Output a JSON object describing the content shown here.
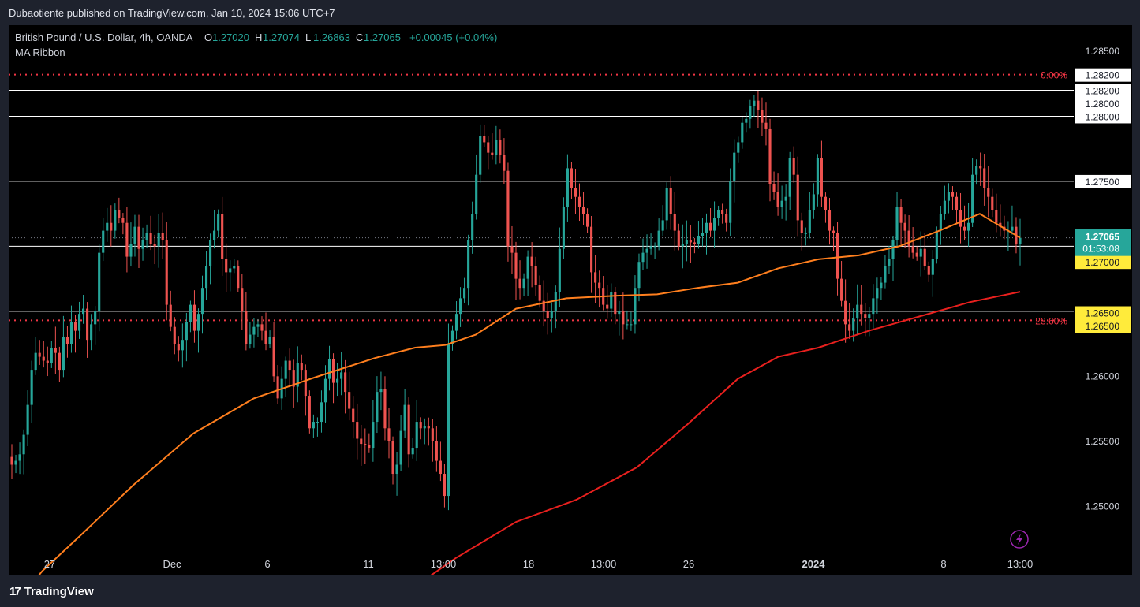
{
  "header": {
    "publish_line": "Dubaotiente published on TradingView.com, Jan 10, 2024 15:06 UTC+7"
  },
  "legend": {
    "symbol": "British Pound / U.S. Dollar, 4h, OANDA",
    "o_label": "O",
    "o_value": "1.27020",
    "h_label": "H",
    "h_value": "1.27074",
    "l_label": "L",
    "l_value": "1.26863",
    "c_label": "C",
    "c_value": "1.27065",
    "change": "+0.00045 (+0.04%)",
    "indicator": "MA Ribbon"
  },
  "footer": {
    "brand": "TradingView"
  },
  "colors": {
    "up": "#26a69a",
    "down": "#ef5350",
    "ma_fast": "#ff7f1e",
    "ma_slow": "#e8201e",
    "fib": "#f23645",
    "level": "#ffffff",
    "price_tag": "#26a69a",
    "level_tag": "#ffeb3b"
  },
  "chart_data": {
    "type": "candlestick",
    "title": "British Pound / U.S. Dollar, 4h, OANDA",
    "ylim": [
      1.2465,
      1.287
    ],
    "y_ticks": [
      "1.25000",
      "1.25500",
      "1.26000",
      "1.27500",
      "1.28000",
      "1.28500"
    ],
    "x_ticks": [
      "27",
      "Dec",
      "6",
      "11",
      "13:00",
      "18",
      "13:00",
      "26",
      "2024",
      "8",
      "13:00"
    ],
    "horizontal_levels": [
      {
        "value": 1.282,
        "label": "1.28200",
        "style": "solid"
      },
      {
        "value": 1.28,
        "label": "1.28000",
        "style": "solid"
      },
      {
        "value": 1.275,
        "label": "1.27500",
        "style": "solid"
      },
      {
        "value": 1.27,
        "label": "1.27000",
        "style": "solid"
      },
      {
        "value": 1.265,
        "label": "1.26500",
        "style": "solid"
      }
    ],
    "fib_levels": [
      {
        "value": 1.2832,
        "label": "0.00%"
      },
      {
        "value": 1.2643,
        "label": "23.60%"
      }
    ],
    "right_tags": [
      {
        "value": 1.2832,
        "label": "1.28200",
        "kind": "level"
      },
      {
        "value": 1.282,
        "label": "1.28200",
        "kind": "level"
      },
      {
        "value": 1.281,
        "label": "1.28000",
        "kind": "level"
      },
      {
        "value": 1.28,
        "label": "1.28000",
        "kind": "level"
      },
      {
        "value": 1.275,
        "label": "1.27500",
        "kind": "level"
      },
      {
        "value": 1.2699,
        "label": "1.27000",
        "kind": "yellow"
      },
      {
        "value": 1.2688,
        "label": "1.27000",
        "kind": "yellow"
      },
      {
        "value": 1.2649,
        "label": "1.26500",
        "kind": "yellow"
      },
      {
        "value": 1.2639,
        "label": "1.26500",
        "kind": "yellow"
      }
    ],
    "last_price": {
      "value": 1.27065,
      "label": "1.27065",
      "countdown": "01:53:08"
    },
    "candles_close": [
      1.2532,
      1.2535,
      1.254,
      1.2555,
      1.2578,
      1.2605,
      1.2618,
      1.2615,
      1.2612,
      1.261,
      1.2622,
      1.2618,
      1.2605,
      1.263,
      1.2625,
      1.2642,
      1.2635,
      1.2648,
      1.2652,
      1.2628,
      1.264,
      1.265,
      1.2695,
      1.2712,
      1.2718,
      1.2712,
      1.2728,
      1.2722,
      1.2718,
      1.2692,
      1.2702,
      1.2715,
      1.2698,
      1.2705,
      1.271,
      1.2702,
      1.27,
      1.271,
      1.2705,
      1.2655,
      1.2638,
      1.2625,
      1.262,
      1.2628,
      1.2642,
      1.2655,
      1.2635,
      1.2648,
      1.2668,
      1.2685,
      1.2705,
      1.2712,
      1.2725,
      1.269,
      1.268,
      1.2683,
      1.2685,
      1.2668,
      1.265,
      1.2625,
      1.2632,
      1.2638,
      1.264,
      1.2635,
      1.2625,
      1.263,
      1.26,
      1.2583,
      1.2598,
      1.2612,
      1.2605,
      1.2592,
      1.261,
      1.2605,
      1.2585,
      1.256,
      1.2565,
      1.2565,
      1.258,
      1.2598,
      1.2613,
      1.2595,
      1.2598,
      1.2603,
      1.2588,
      1.2575,
      1.2565,
      1.2552,
      1.2548,
      1.2547,
      1.2545,
      1.2565,
      1.2588,
      1.259,
      1.256,
      1.255,
      1.2525,
      1.2532,
      1.2558,
      1.2578,
      1.254,
      1.2545,
      1.2565,
      1.256,
      1.2562,
      1.256,
      1.255,
      1.2535,
      1.2525,
      1.2508,
      1.2625,
      1.2635,
      1.2648,
      1.266,
      1.2668,
      1.2705,
      1.2725,
      1.2755,
      1.2785,
      1.278,
      1.2772,
      1.277,
      1.2782,
      1.277,
      1.2758,
      1.27,
      1.2695,
      1.2675,
      1.2668,
      1.2675,
      1.2692,
      1.2685,
      1.267,
      1.2658,
      1.265,
      1.2645,
      1.265,
      1.2665,
      1.2698,
      1.273,
      1.276,
      1.2745,
      1.2738,
      1.273,
      1.2725,
      1.2715,
      1.268,
      1.2672,
      1.2668,
      1.2655,
      1.2652,
      1.2665,
      1.2648,
      1.265,
      1.264,
      1.264,
      1.264,
      1.2668,
      1.2688,
      1.2695,
      1.2698,
      1.27,
      1.27,
      1.2712,
      1.272,
      1.2745,
      1.2725,
      1.2712,
      1.27,
      1.2702,
      1.2705,
      1.2703,
      1.2702,
      1.2708,
      1.271,
      1.2718,
      1.2712,
      1.2722,
      1.2728,
      1.2725,
      1.2718,
      1.275,
      1.2772,
      1.278,
      1.2795,
      1.2798,
      1.2808,
      1.2812,
      1.2805,
      1.2795,
      1.279,
      1.2748,
      1.2742,
      1.273,
      1.2735,
      1.2738,
      1.2768,
      1.2755,
      1.272,
      1.271,
      1.271,
      1.2728,
      1.274,
      1.2768,
      1.2738,
      1.2728,
      1.2712,
      1.271,
      1.2675,
      1.2658,
      1.264,
      1.2635,
      1.2645,
      1.2655,
      1.2648,
      1.2645,
      1.2648,
      1.266,
      1.2668,
      1.2672,
      1.2685,
      1.269,
      1.2705,
      1.273,
      1.2718,
      1.2712,
      1.27,
      1.2695,
      1.2692,
      1.2698,
      1.2685,
      1.2678,
      1.269,
      1.2712,
      1.2725,
      1.2735,
      1.2742,
      1.2738,
      1.2728,
      1.2715,
      1.2712,
      1.2718,
      1.2755,
      1.2762,
      1.276,
      1.2745,
      1.2738,
      1.2728,
      1.2718,
      1.2715,
      1.2712,
      1.2712,
      1.2715,
      1.2702,
      1.27065
    ],
    "ma_fast_points": [
      [
        0.0,
        1.2421
      ],
      [
        0.03,
        1.245
      ],
      [
        0.07,
        1.2479
      ],
      [
        0.12,
        1.2516
      ],
      [
        0.18,
        1.2556
      ],
      [
        0.24,
        1.2583
      ],
      [
        0.3,
        1.2599
      ],
      [
        0.36,
        1.2614
      ],
      [
        0.4,
        1.2622
      ],
      [
        0.43,
        1.2624
      ],
      [
        0.46,
        1.2632
      ],
      [
        0.5,
        1.2652
      ],
      [
        0.55,
        1.266
      ],
      [
        0.6,
        1.2662
      ],
      [
        0.64,
        1.2663
      ],
      [
        0.68,
        1.2668
      ],
      [
        0.72,
        1.2672
      ],
      [
        0.76,
        1.2683
      ],
      [
        0.8,
        1.269
      ],
      [
        0.84,
        1.2693
      ],
      [
        0.88,
        1.27
      ],
      [
        0.92,
        1.2712
      ],
      [
        0.96,
        1.2725
      ],
      [
        1.0,
        1.27065
      ]
    ],
    "ma_slow_points": [
      [
        0.39,
        1.2433
      ],
      [
        0.44,
        1.246
      ],
      [
        0.5,
        1.2488
      ],
      [
        0.56,
        1.2505
      ],
      [
        0.62,
        1.253
      ],
      [
        0.67,
        1.2563
      ],
      [
        0.72,
        1.2598
      ],
      [
        0.76,
        1.2615
      ],
      [
        0.8,
        1.2622
      ],
      [
        0.85,
        1.2635
      ],
      [
        0.9,
        1.2646
      ],
      [
        0.95,
        1.2657
      ],
      [
        1.0,
        1.2665
      ]
    ]
  }
}
